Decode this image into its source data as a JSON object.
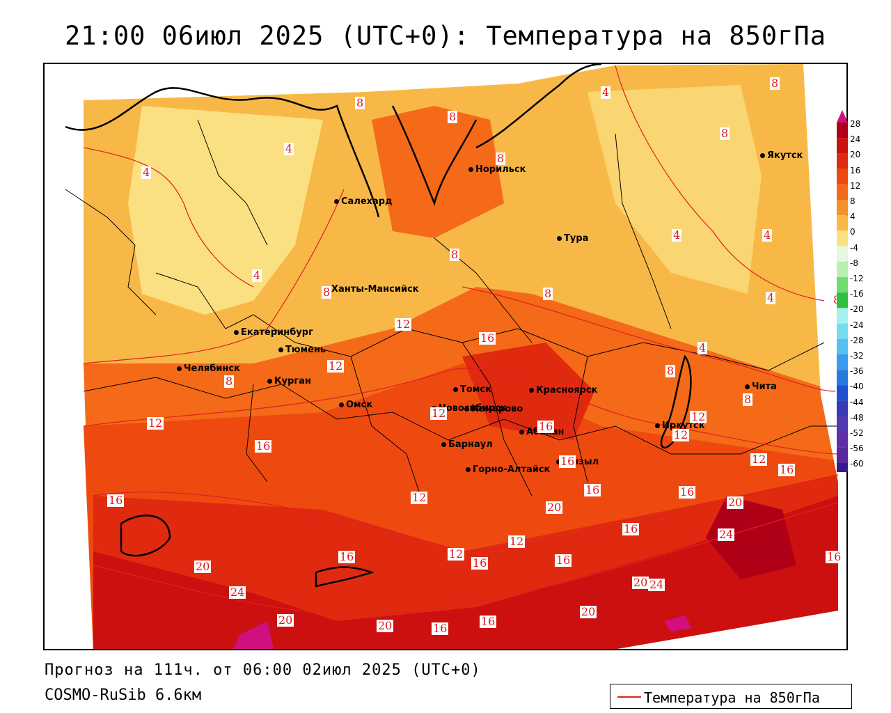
{
  "title": "21:00 06июл 2025 (UTC+0): Температура на 850гПа",
  "footer": {
    "forecast": "Прогноз на 111ч. от 06:00 02июл 2025 (UTC+0)",
    "model": "COSMO-RuSib 6.6км"
  },
  "legend": {
    "label": "Температура на 850гПа",
    "line_color": "#e02020"
  },
  "cities": [
    {
      "name": "Якутск"
    },
    {
      "name": "Норильск"
    },
    {
      "name": "Салехард"
    },
    {
      "name": "Тура"
    },
    {
      "name": "Ханты-Мансийск"
    },
    {
      "name": "Екатеринбург"
    },
    {
      "name": "Тюмень"
    },
    {
      "name": "Челябинск"
    },
    {
      "name": "Курган"
    },
    {
      "name": "Омск"
    },
    {
      "name": "Новосибирск"
    },
    {
      "name": "Томск"
    },
    {
      "name": "Кемерово"
    },
    {
      "name": "Красноярск"
    },
    {
      "name": "Абакан"
    },
    {
      "name": "Барнаул"
    },
    {
      "name": "Горно-Алтайск"
    },
    {
      "name": "Кызыл"
    },
    {
      "name": "Иркутск"
    },
    {
      "name": "Чита"
    }
  ],
  "isotherm_labels": [
    "4",
    "4",
    "4",
    "4",
    "4",
    "4",
    "4",
    "4",
    "8",
    "8",
    "8",
    "8",
    "8",
    "8",
    "8",
    "8",
    "8",
    "8",
    "8",
    "12",
    "12",
    "12",
    "12",
    "12",
    "12",
    "12",
    "12",
    "12",
    "16",
    "16",
    "16",
    "16",
    "16",
    "16",
    "16",
    "16",
    "16",
    "16",
    "16",
    "16",
    "16",
    "16",
    "20",
    "20",
    "20",
    "20",
    "20",
    "20",
    "20",
    "24",
    "24",
    "24",
    "8",
    "12",
    "16"
  ],
  "colorbar": {
    "ticks": [
      "28",
      "24",
      "20",
      "16",
      "12",
      "8",
      "4",
      "0",
      "-4",
      "-8",
      "-12",
      "-16",
      "-20",
      "-24",
      "-28",
      "-32",
      "-36",
      "-40",
      "-44",
      "-48",
      "-52",
      "-56",
      "-60"
    ],
    "colors": [
      "#b00018",
      "#cc1010",
      "#e02a10",
      "#ee4a10",
      "#f46a18",
      "#f6902a",
      "#f8b848",
      "#fae080",
      "#e8f8e0",
      "#b8f0b0",
      "#70dc70",
      "#30c040",
      "#a8f0f0",
      "#78dcf0",
      "#58c0f0",
      "#3a9cec",
      "#2a78e0",
      "#2050d0",
      "#3a3ab8",
      "#5038b0",
      "#6030a8",
      "#5828a0",
      "#3a1890"
    ]
  }
}
